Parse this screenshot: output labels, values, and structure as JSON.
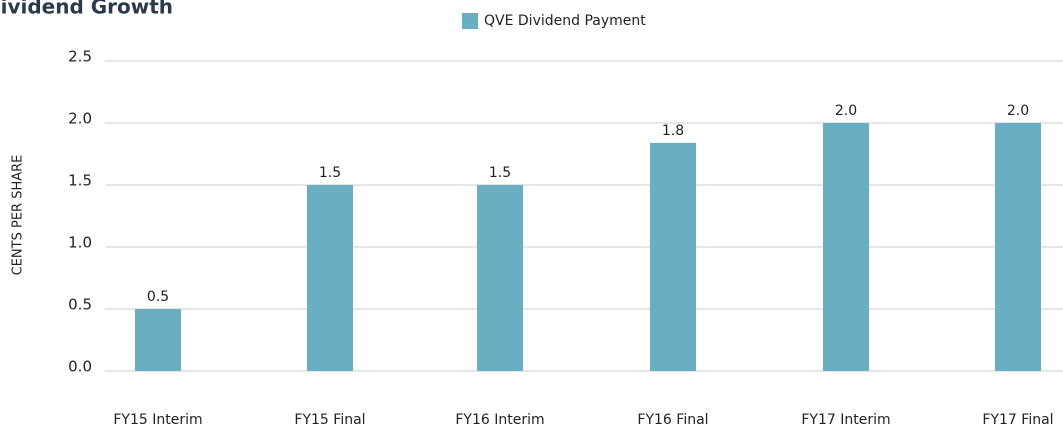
{
  "chart_data": {
    "type": "bar",
    "title": "Dividend Growth",
    "y_label": "CENTS PER SHARE",
    "categories": [
      "FY15 Interim",
      "FY15 Final",
      "FY16 Interim",
      "FY16 Final",
      "FY17 Interim",
      "FY17 Final"
    ],
    "series": [
      {
        "name": "QVE Dividend Payment",
        "color": "#6aaec4",
        "values": [
          0.5,
          1.5,
          1.5,
          1.84,
          2,
          2
        ],
        "value_labels": [
          "0.5",
          "1.5",
          "1.5",
          "1.8",
          "2.0",
          "2.0"
        ]
      }
    ],
    "ylim": [
      0,
      2.5
    ],
    "yticks": [
      {
        "value": 0,
        "label": "0.0"
      },
      0.5,
      {
        "value": 1,
        "label": "1.0"
      },
      1.5,
      {
        "value": 2,
        "label": "2.0"
      },
      2.5
    ],
    "grid": true,
    "legend": "top"
  }
}
